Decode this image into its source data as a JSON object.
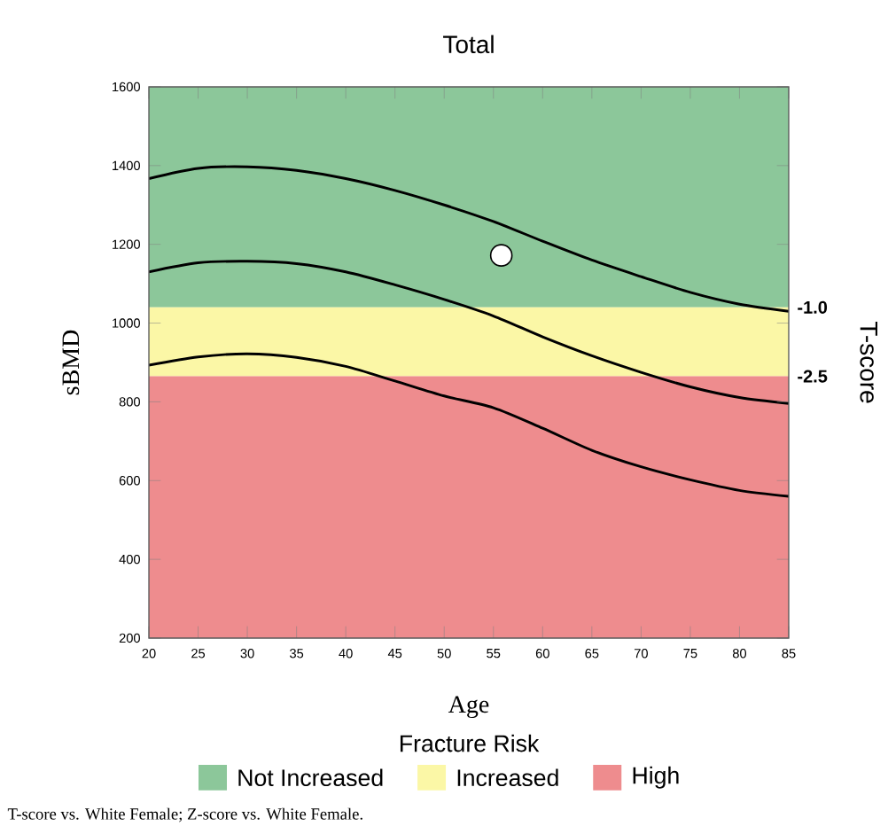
{
  "chart_data": {
    "type": "line",
    "title": "Total",
    "xlabel": "Age",
    "ylabel": "sBMD",
    "y2label": "T-score",
    "legend_title": "Fracture Risk",
    "x": [
      20,
      25,
      30,
      35,
      40,
      45,
      50,
      55,
      60,
      65,
      70,
      75,
      80,
      85
    ],
    "series": [
      {
        "color": "#000000",
        "values": [
          1367,
          1393,
          1397,
          1388,
          1367,
          1337,
          1300,
          1258,
          1208,
          1160,
          1118,
          1078,
          1048,
          1030
        ]
      },
      {
        "color": "#000000",
        "values": [
          1130,
          1153,
          1157,
          1151,
          1130,
          1097,
          1060,
          1018,
          965,
          917,
          875,
          838,
          811,
          796
        ]
      },
      {
        "color": "#000000",
        "values": [
          893,
          914,
          922,
          913,
          890,
          853,
          815,
          785,
          733,
          677,
          635,
          602,
          575,
          560
        ]
      },
      {
        "type": "scatter",
        "color": "#000000",
        "marker": "circle",
        "x": [
          55.8
        ],
        "values": [
          1172
        ]
      }
    ],
    "xlim": [
      20,
      85
    ],
    "xticks": [
      20,
      25,
      30,
      35,
      40,
      45,
      50,
      55,
      60,
      65,
      70,
      75,
      80,
      85
    ],
    "ylim": [
      200,
      1600
    ],
    "yticks": [
      200,
      400,
      600,
      800,
      1000,
      1200,
      1400,
      1600
    ],
    "y2lim": [
      -8.2,
      3.8
    ],
    "y2ticks": [
      {
        "value": -1,
        "label": "-1.0"
      },
      {
        "value": -2.5,
        "label": "-2.5"
      }
    ],
    "bands": [
      {
        "axis": "y",
        "from": 1040,
        "to": 1600,
        "label": "Not Increased",
        "color": "#8cc79a"
      },
      {
        "axis": "y",
        "from": 865,
        "to": 1040,
        "label": "Increased",
        "color": "#fbf7a6"
      },
      {
        "axis": "y",
        "from": 200,
        "to": 865,
        "label": "High",
        "color": "#ee8c8e"
      }
    ],
    "legend": "bottom",
    "annotations": [
      "T-score vs. White Female; Z-score vs. White Female."
    ]
  }
}
